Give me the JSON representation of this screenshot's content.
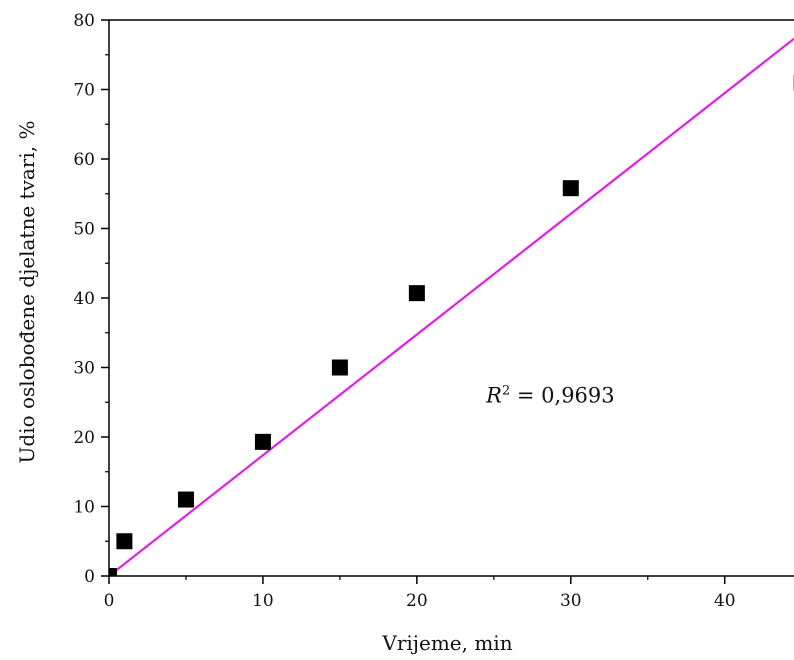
{
  "chart_data": {
    "type": "scatter",
    "title": "",
    "xlabel": "Vrijeme, min",
    "ylabel": "Udio oslobođene djelatne tvari, %",
    "xlim": [
      0,
      44.5
    ],
    "ylim": [
      0,
      80
    ],
    "x_ticks": [
      "0",
      "10",
      "20",
      "30",
      "40"
    ],
    "x_tick_values": [
      0,
      10,
      20,
      30,
      40
    ],
    "y_ticks": [
      "0",
      "10",
      "20",
      "30",
      "40",
      "50",
      "60",
      "70",
      "80"
    ],
    "y_tick_values": [
      0,
      10,
      20,
      30,
      40,
      50,
      60,
      70,
      80
    ],
    "grid": false,
    "series": [
      {
        "type": "scatter",
        "marker": "square",
        "color": "#000000",
        "x": [
          0,
          1,
          5,
          10,
          15,
          20,
          30,
          45
        ],
        "y": [
          0,
          5,
          11,
          19.3,
          30,
          40.7,
          55.8,
          71
        ]
      },
      {
        "type": "line",
        "color": "#ff00ff",
        "x": [
          0,
          44.5
        ],
        "y": [
          0,
          77.3
        ]
      }
    ],
    "annotation": {
      "symbol": "R",
      "superscript": "2",
      "text": " = 0,9693",
      "x": 24.5,
      "y": 26
    }
  }
}
